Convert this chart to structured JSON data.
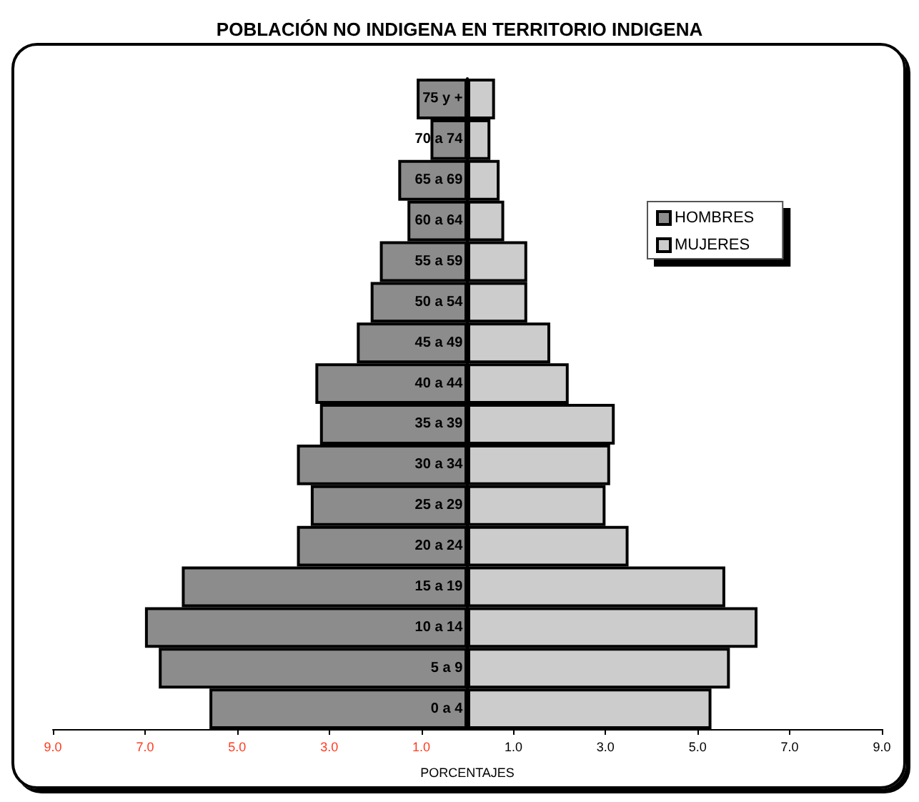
{
  "chart_data": {
    "type": "bar",
    "orientation": "horizontal",
    "title": "POBLACIÓN NO INDIGENA EN TERRITORIO INDIGENA",
    "xlabel": "PORCENTAJES",
    "categories": [
      "75 y +",
      "70 a 74",
      "65 a 69",
      "60 a 64",
      "55 a 59",
      "50 a 54",
      "45 a 49",
      "40 a 44",
      "35 a 39",
      "30 a 34",
      "25 a 29",
      "20 a 24",
      "15 a 19",
      "10 a 14",
      "5 a 9",
      "0 a 4"
    ],
    "series": [
      {
        "name": "HOMBRES",
        "color": "#8c8c8c",
        "values": [
          -1.1,
          -0.8,
          -1.5,
          -1.3,
          -1.9,
          -2.1,
          -2.4,
          -3.3,
          -3.2,
          -3.7,
          -3.4,
          -3.7,
          -6.2,
          -7.0,
          -6.7,
          -5.6
        ]
      },
      {
        "name": "MUJERES",
        "color": "#cccccc",
        "values": [
          0.6,
          0.5,
          0.7,
          0.8,
          1.3,
          1.3,
          1.8,
          2.2,
          3.2,
          3.1,
          3.0,
          3.5,
          5.6,
          6.3,
          5.7,
          5.3
        ]
      }
    ],
    "xlim": [
      -9,
      9
    ],
    "xticks": [
      {
        "value": -9,
        "label": "9.0"
      },
      {
        "value": -7,
        "label": "7.0"
      },
      {
        "value": -5,
        "label": "5.0"
      },
      {
        "value": -3,
        "label": "3.0"
      },
      {
        "value": -1,
        "label": "1.0"
      },
      {
        "value": 1,
        "label": "1.0"
      },
      {
        "value": 3,
        "label": "3.0"
      },
      {
        "value": 5,
        "label": "5.0"
      },
      {
        "value": 7,
        "label": "7.0"
      },
      {
        "value": 9,
        "label": "9.0"
      }
    ],
    "stacked": true,
    "grid": false,
    "legend": "top right"
  }
}
